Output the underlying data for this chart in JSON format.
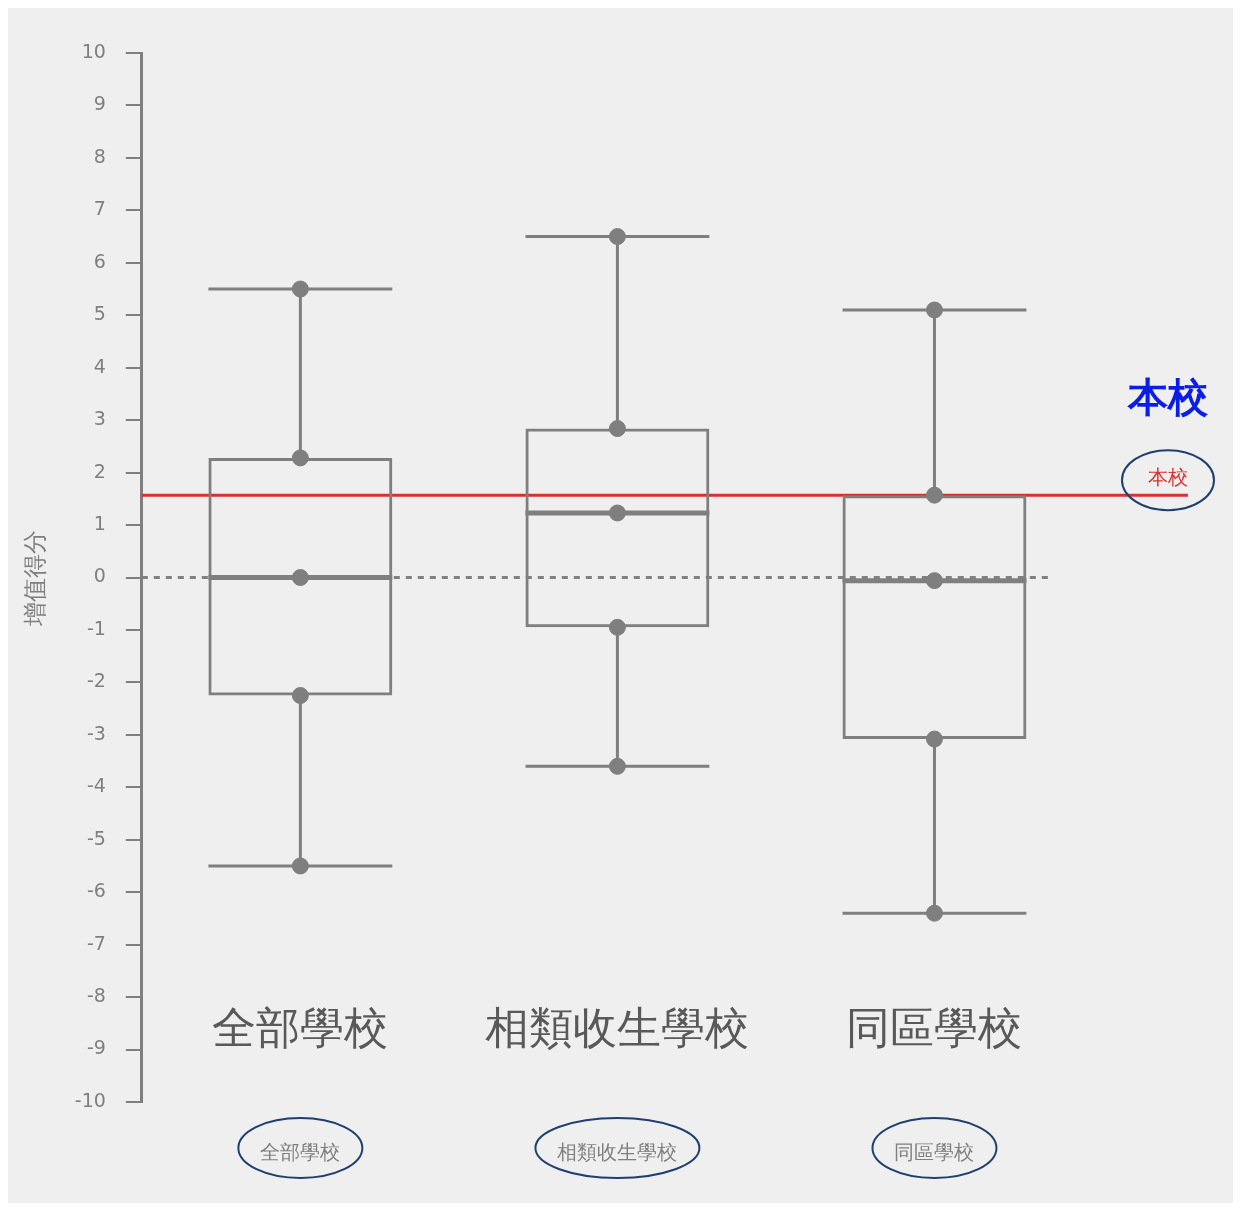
{
  "chart_data": {
    "type": "box",
    "ylabel": "增值得分",
    "categories": [
      "全部學校",
      "相類收生學校",
      "同區學校"
    ],
    "color": "#7f7f7f",
    "marker": "circle",
    "grid": false,
    "boxes": [
      {
        "low": -5.5,
        "q1": -2.25,
        "median": 0,
        "q3": 2.28,
        "high": 5.5
      },
      {
        "low": -3.6,
        "q1": -0.95,
        "median": 1.23,
        "q3": 2.84,
        "high": 6.5
      },
      {
        "low": -6.4,
        "q1": -3.08,
        "median": -0.06,
        "q3": 1.57,
        "high": 5.1
      }
    ],
    "ylim": [
      -10,
      10
    ],
    "yticks": [
      -10,
      -9,
      -8,
      -7,
      -6,
      -5,
      -4,
      -3,
      -2,
      -1,
      0,
      1,
      2,
      3,
      4,
      5,
      6,
      7,
      8,
      9,
      10
    ],
    "ref_lines": [
      {
        "axis": "y",
        "value": 1.57,
        "label": "本校",
        "color": "#d93030",
        "line_style": "solid"
      },
      {
        "axis": "y",
        "value": 0,
        "color": "#808080",
        "line_style": "dashed"
      }
    ],
    "series": [
      {
        "type": "scatter",
        "color": "#7f7f7f",
        "x": [
          "全部學校",
          "全部學校",
          "全部學校",
          "全部學校",
          "全部學校",
          "相類收生學校",
          "相類收生學校",
          "相類收生學校",
          "相類收生學校",
          "相類收生學校",
          "同區學校",
          "同區學校",
          "同區學校",
          "同區學校",
          "同區學校"
        ],
        "values": [
          -5.5,
          -2.25,
          0,
          2.28,
          5.5,
          -3.6,
          -0.95,
          1.23,
          2.84,
          6.5,
          -6.4,
          -3.08,
          -0.06,
          1.57,
          5.1
        ]
      }
    ],
    "annotations": [
      "全部學校",
      "相類收生學校",
      "同區學校",
      "本校"
    ]
  }
}
